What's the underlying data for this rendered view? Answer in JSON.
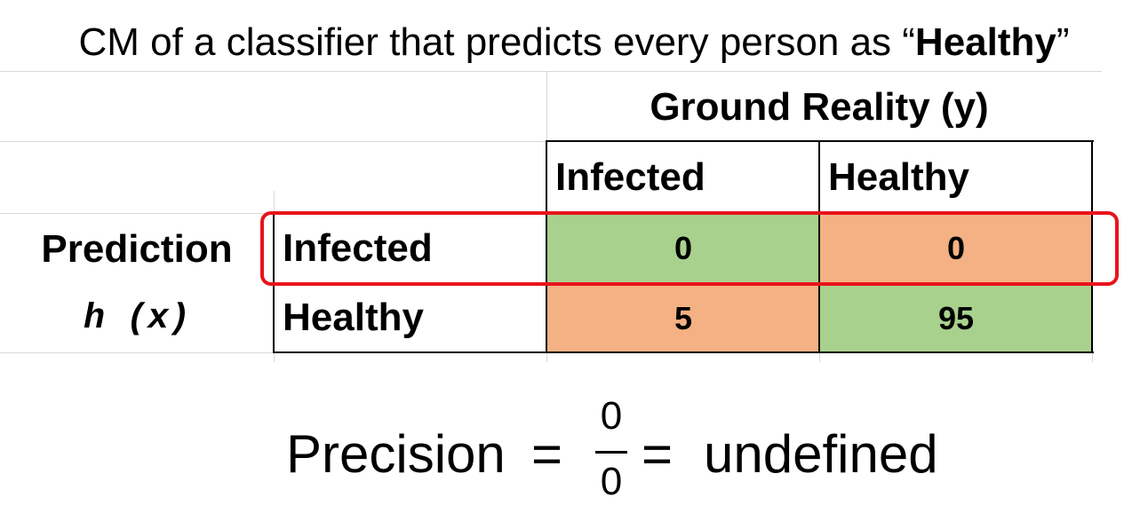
{
  "title": {
    "prefix": "CM of a classifier that predicts every person as “",
    "bold": "Healthy",
    "suffix": "”"
  },
  "matrix": {
    "column_group_label": "Ground Reality (y)",
    "row_group_label": "Prediction",
    "row_group_sublabel": "h (x)",
    "columns": [
      "Infected",
      "Healthy"
    ],
    "rows": [
      {
        "label": "Infected",
        "values": [
          "0",
          "0"
        ]
      },
      {
        "label": "Healthy",
        "values": [
          "5",
          "95"
        ]
      }
    ],
    "colors": {
      "correct": "#a9d18e",
      "incorrect": "#f4b183",
      "highlight": "#e8141c"
    }
  },
  "formula": {
    "lhs": "Precision",
    "eq1": "=",
    "numerator": "0",
    "denominator": "0",
    "eq2": "=",
    "rhs": "undefined"
  }
}
